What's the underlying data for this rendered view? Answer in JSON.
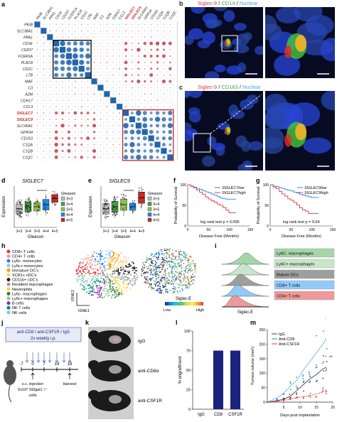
{
  "panels": {
    "a": {
      "label": "a",
      "genes": [
        "PKIB",
        "SLC38A1",
        "PPA1",
        "CD1E",
        "CD207",
        "FCER1A",
        "PLAC8",
        "CD1C",
        "LTB",
        "MAF",
        "C3",
        "A2M",
        "CDH17",
        "CCL3",
        "SIGLEC7",
        "SIGLEC9",
        "SLC40A1",
        "GPR34",
        "CD163",
        "C1QA",
        "C1QB",
        "C1QC"
      ],
      "highlight_genes": [
        "SIGLEC7",
        "SIGLEC9"
      ],
      "colorbar_ticks": [
        "1",
        "0.8",
        "0.6",
        "0.4",
        "0.2",
        "0",
        "-0.2",
        "-0.4",
        "-0.6",
        "-0.8",
        "-1"
      ],
      "colors": {
        "pos": "#2166ac",
        "neg": "#b2182b",
        "box": "#000000",
        "box2": "#c62828"
      }
    },
    "b": {
      "label": "b",
      "stain": [
        "Siglec-9",
        " / ",
        "CD14",
        " / ",
        "Nuclear"
      ],
      "stain_colors": [
        "#e53935",
        "#ffffff",
        "#43a047",
        "#ffffff",
        "#42a5f5"
      ]
    },
    "c": {
      "label": "c",
      "stain": [
        "Siglec-9",
        " / ",
        "CD163",
        " / ",
        "Nuclear"
      ],
      "stain_colors": [
        "#e53935",
        "#ffffff",
        "#43a047",
        "#ffffff",
        "#42a5f5"
      ]
    },
    "d": {
      "label": "d",
      "title": "SIGLEC7",
      "ylabel": "Expression",
      "xlabel": "Gleason",
      "categories": [
        "3+3",
        "3+4",
        "3+5",
        "4+4",
        "4+5"
      ],
      "legend_title": "Gleason",
      "colors": [
        "#bdbdbd",
        "#43a047",
        "#8bc34a",
        "#1e88e5",
        "#c62828"
      ]
    },
    "e": {
      "label": "e",
      "title": "SIGLEC9",
      "ylabel": "Expression",
      "xlabel": "Gleason",
      "categories": [
        "3+3",
        "3+4",
        "3+5",
        "4+4",
        "4+5"
      ],
      "legend_title": "Gleason",
      "colors": [
        "#bdbdbd",
        "#43a047",
        "#8bc34a",
        "#1e88e5",
        "#c62828"
      ]
    },
    "f": {
      "label": "f",
      "ylabel": "Probability of Survival",
      "xlabel": "Disease Free (Months)",
      "legend": [
        "SIGLEC7low",
        "SIGLEC7high"
      ],
      "stat": "log rank test p = 0.005",
      "xticks": [
        "0",
        "50",
        "100",
        "150"
      ],
      "yticks": [
        "0",
        "50",
        "100"
      ]
    },
    "g": {
      "label": "g",
      "ylabel": "Probability of Survival",
      "xlabel": "Disease Free (Months)",
      "legend": [
        "SIGLEC9low",
        "SIGLEC9high"
      ],
      "stat": "log rank test p = 0.04",
      "xticks": [
        "0",
        "50",
        "100",
        "150"
      ],
      "yticks": [
        "0",
        "50",
        "100"
      ]
    },
    "h": {
      "label": "h",
      "clusters": [
        {
          "name": "CD8+ T cells",
          "color": "#e53935"
        },
        {
          "name": "CD4+ T cells",
          "color": "#ef9a9a"
        },
        {
          "name": "Ly6c- monocytes",
          "color": "#1e88e5"
        },
        {
          "name": "Ly6c+ monocytes",
          "color": "#90caf9"
        },
        {
          "name": "Immature DC's",
          "color": "#ff9800"
        },
        {
          "name": "XCR1+ cDC's",
          "color": "#ffcc80"
        },
        {
          "name": "CD11b+ cDC's",
          "color": "#212121"
        },
        {
          "name": "Resident macrophages",
          "color": "#9e9e9e"
        },
        {
          "name": "Neutrophils",
          "color": "#fdd835"
        },
        {
          "name": "Ly6c- macrophages",
          "color": "#2e7d32"
        },
        {
          "name": "Ly6c+ macrophages",
          "color": "#81c784"
        },
        {
          "name": "B cells",
          "color": "#8e24aa"
        },
        {
          "name": "NK T cells",
          "color": "#00897b"
        },
        {
          "name": "NK cells",
          "color": "#80cbc4"
        }
      ],
      "tsne2": "tSNE2",
      "tsne1": "tSNE1",
      "scale_title": "Siglec-E",
      "scale_low": "Low",
      "scale_high": "High"
    },
    "i": {
      "label": "i",
      "xlabel": "Siglec-E",
      "rows": [
        {
          "name": "Ly6C- macrophages",
          "color": "#a5d6a7"
        },
        {
          "name": "Ly6C+ macrophages",
          "color": "#c8e6c9"
        },
        {
          "name": "Mature DCs",
          "color": "#9e9e9e"
        },
        {
          "name": "CD8+ T cells",
          "color": "#90caf9"
        },
        {
          "name": "CD4+ T cells",
          "color": "#ef9a9a"
        }
      ]
    },
    "j": {
      "label": "j",
      "line1": "anti-CD8 / anti-CSF1R / IgG",
      "line2": "2x weekly i.p.",
      "days": [
        "-7",
        "0",
        "7",
        "14",
        "18"
      ],
      "injection": "s.c. injection",
      "cells": "5x10⁶ St3gal1⁻/⁻",
      "cells2": "cells",
      "harvest": "Harvest"
    },
    "k": {
      "label": "k",
      "rows": [
        "IgG",
        "anti-CD8α",
        "anti-CSF1R"
      ]
    },
    "l": {
      "label": "l",
      "ylabel": "% engraftment",
      "chart_data": {
        "type": "bar",
        "categories": [
          "IgG",
          "CD8",
          "CSF1R"
        ],
        "values": [
          0,
          75,
          75
        ],
        "ylim": [
          0,
          100
        ],
        "yticks": [
          "0",
          "25",
          "50",
          "75",
          "100"
        ]
      },
      "bar_color": "#1a237e"
    },
    "m": {
      "label": "m",
      "ylabel": "Tumour volume (mm³)",
      "xlabel": "Days post implantation",
      "chart_data": {
        "type": "line",
        "x": [
          0,
          3,
          5,
          7,
          9,
          11,
          13,
          15,
          17,
          18
        ],
        "series": [
          {
            "name": "IgG",
            "color": "#424242",
            "values": [
              0,
              5,
              10,
              20,
              40,
              60,
              80,
              95,
              115,
              120
            ]
          },
          {
            "name": "Anti-CD8",
            "color": "#1e88e5",
            "values": [
              0,
              15,
              30,
              55,
              75,
              110,
              140,
              170,
              200,
              220
            ]
          },
          {
            "name": "Anti-CSF1R",
            "color": "#e53935",
            "values": [
              0,
              3,
              6,
              10,
              15,
              18,
              22,
              28,
              35,
              40
            ]
          }
        ],
        "xticks": [
          5,
          10,
          15,
          20
        ],
        "yticks": [
          0,
          50,
          100,
          150,
          200,
          250
        ],
        "xlim": [
          0,
          20
        ],
        "ylim": [
          0,
          250
        ]
      },
      "sig": "**"
    }
  }
}
